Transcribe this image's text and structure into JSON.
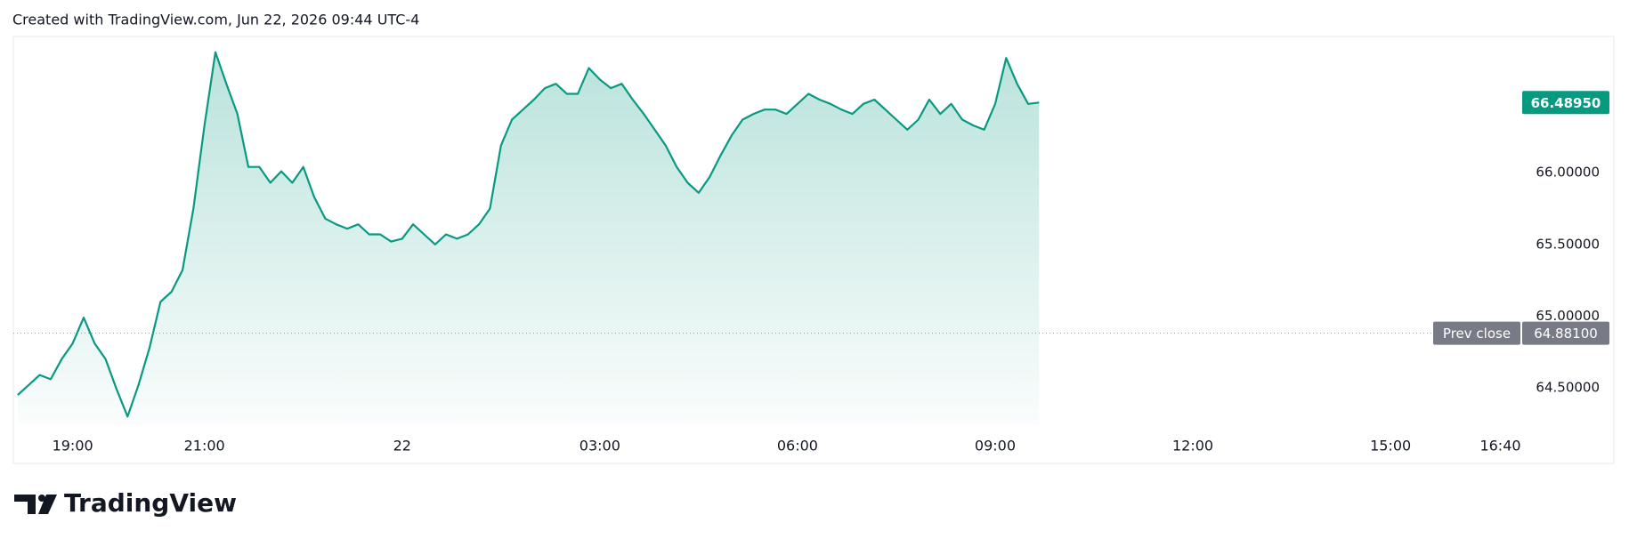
{
  "header": {
    "text": "Created with TradingView.com, Jun 22, 2026 09:44 UTC-4"
  },
  "footer": {
    "brand": "TradingView"
  },
  "chart_data": {
    "type": "area-line",
    "series": [
      {
        "color": "#089981",
        "values": [
          64.45,
          64.52,
          64.59,
          64.56,
          64.7,
          64.81,
          64.99,
          64.81,
          64.7,
          64.49,
          64.3,
          64.52,
          64.78,
          65.1,
          65.17,
          65.32,
          65.75,
          66.33,
          66.84,
          66.62,
          66.41,
          66.04,
          66.04,
          65.93,
          66.01,
          65.93,
          66.04,
          65.83,
          65.68,
          65.64,
          65.61,
          65.64,
          65.57,
          65.57,
          65.52,
          65.54,
          65.64,
          65.57,
          65.5,
          65.57,
          65.54,
          65.57,
          65.64,
          65.75,
          66.19,
          66.37,
          66.44,
          66.51,
          66.59,
          66.62,
          66.55,
          66.55,
          66.73,
          66.65,
          66.59,
          66.62,
          66.51,
          66.41,
          66.3,
          66.19,
          66.04,
          65.93,
          65.86,
          65.97,
          66.12,
          66.26,
          66.37,
          66.41,
          66.44,
          66.44,
          66.41,
          66.48,
          66.55,
          66.51,
          66.48,
          66.44,
          66.41,
          66.48,
          66.51,
          66.44,
          66.37,
          66.3,
          66.37,
          66.51,
          66.41,
          66.48,
          66.37,
          66.33,
          66.3,
          66.48,
          66.8,
          66.62,
          66.48,
          66.4895
        ],
        "last_label": "66.48950"
      }
    ],
    "reference_lines": [
      {
        "name": "Prev close",
        "value": 64.881,
        "label": "64.88100"
      }
    ],
    "xlim": [
      -0.4,
      136.5
    ],
    "xticks": [
      {
        "value": 5,
        "label": "19:00"
      },
      {
        "value": 17,
        "label": "21:00"
      },
      {
        "value": 35,
        "label": "22"
      },
      {
        "value": 53,
        "label": "03:00"
      },
      {
        "value": 71,
        "label": "06:00"
      },
      {
        "value": 89,
        "label": "09:00"
      },
      {
        "value": 107,
        "label": "12:00"
      },
      {
        "value": 125,
        "label": "15:00"
      },
      {
        "value": 135,
        "label": "16:40"
      }
    ],
    "ylim": [
      64.24,
      66.95
    ],
    "yticks": [
      {
        "value": 64.5,
        "label": "64.50000"
      },
      {
        "value": 65,
        "label": "65.00000"
      },
      {
        "value": 65.5,
        "label": "65.50000"
      },
      {
        "value": 66,
        "label": "66.00000"
      }
    ]
  }
}
